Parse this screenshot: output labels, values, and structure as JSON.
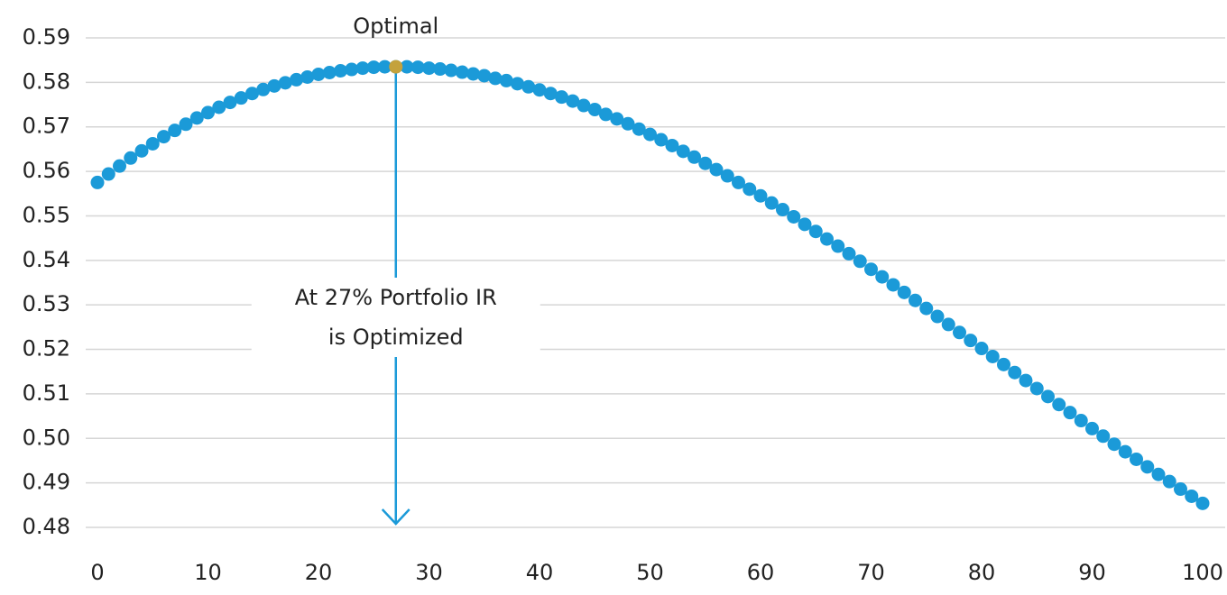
{
  "chart_data": {
    "type": "scatter",
    "x": [
      0,
      1,
      2,
      3,
      4,
      5,
      6,
      7,
      8,
      9,
      10,
      11,
      12,
      13,
      14,
      15,
      16,
      17,
      18,
      19,
      20,
      21,
      22,
      23,
      24,
      25,
      26,
      27,
      28,
      29,
      30,
      31,
      32,
      33,
      34,
      35,
      36,
      37,
      38,
      39,
      40,
      41,
      42,
      43,
      44,
      45,
      46,
      47,
      48,
      49,
      50,
      51,
      52,
      53,
      54,
      55,
      56,
      57,
      58,
      59,
      60,
      61,
      62,
      63,
      64,
      65,
      66,
      67,
      68,
      69,
      70,
      71,
      72,
      73,
      74,
      75,
      76,
      77,
      78,
      79,
      80,
      81,
      82,
      83,
      84,
      85,
      86,
      87,
      88,
      89,
      90,
      91,
      92,
      93,
      94,
      95,
      96,
      97,
      98,
      99,
      100
    ],
    "series": [
      {
        "color": "#1b9ad8",
        "values": [
          0.5575,
          0.5594,
          0.5612,
          0.563,
          0.5646,
          0.5662,
          0.5678,
          0.5692,
          0.5706,
          0.572,
          0.5732,
          0.5744,
          0.5755,
          0.5765,
          0.5775,
          0.5784,
          0.5792,
          0.5799,
          0.5806,
          0.5812,
          0.5818,
          0.5822,
          0.5826,
          0.5829,
          0.5832,
          0.5834,
          0.5835,
          0.5835,
          0.5835,
          0.5834,
          0.5832,
          0.583,
          0.5827,
          0.5823,
          0.5819,
          0.5815,
          0.5809,
          0.5804,
          0.5797,
          0.579,
          0.5783,
          0.5775,
          0.5767,
          0.5758,
          0.5748,
          0.5739,
          0.5728,
          0.5718,
          0.5707,
          0.5695,
          0.5683,
          0.5671,
          0.5658,
          0.5645,
          0.5632,
          0.5618,
          0.5604,
          0.559,
          0.5575,
          0.556,
          0.5545,
          0.5529,
          0.5514,
          0.5498,
          0.5481,
          0.5465,
          0.5448,
          0.5432,
          0.5415,
          0.5398,
          0.538,
          0.5363,
          0.5345,
          0.5328,
          0.531,
          0.5292,
          0.5274,
          0.5256,
          0.5238,
          0.522,
          0.5202,
          0.5184,
          0.5166,
          0.5148,
          0.513,
          0.5112,
          0.5094,
          0.5076,
          0.5058,
          0.504,
          0.5022,
          0.5005,
          0.4987,
          0.497,
          0.4953,
          0.4936,
          0.4919,
          0.4903,
          0.4886,
          0.487,
          0.4854
        ]
      }
    ],
    "highlight": {
      "x": 27,
      "color": "#c4a23c",
      "label": "Optimal"
    },
    "annotation": {
      "lines": [
        "At 27% Portfolio IR",
        "is Optimized"
      ],
      "color": "#1b9ad8"
    },
    "xlim": [
      0,
      100
    ],
    "xticks": [
      0,
      10,
      20,
      30,
      40,
      50,
      60,
      70,
      80,
      90,
      100
    ],
    "ylim": [
      0.48,
      0.59
    ],
    "yticks": [
      0.48,
      0.49,
      {
        "value": 0.5,
        "label": "0.50"
      },
      0.51,
      0.52,
      0.53,
      0.54,
      0.55,
      0.56,
      0.57,
      0.58,
      0.59
    ],
    "grid": true
  }
}
